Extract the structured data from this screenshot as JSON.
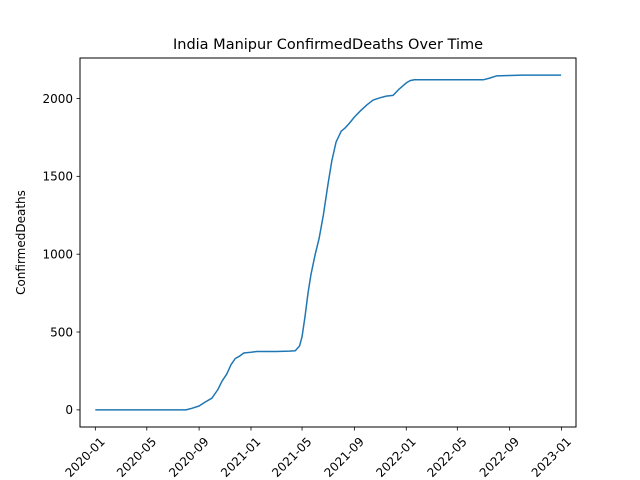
{
  "chart_data": {
    "type": "line",
    "title": "India Manipur ConfirmedDeaths Over Time",
    "xlabel": "",
    "ylabel": "ConfirmedDeaths",
    "xlim": [
      "2019-11-26",
      "2023-02-04"
    ],
    "ylim": [
      -110,
      2260
    ],
    "x_ticks": [
      "2020-01",
      "2020-05",
      "2020-09",
      "2021-01",
      "2021-05",
      "2021-09",
      "2022-01",
      "2022-05",
      "2022-09",
      "2023-01"
    ],
    "y_ticks": [
      0,
      500,
      1000,
      1500,
      2000
    ],
    "grid": false,
    "line_color": "#1f77b4",
    "series": [
      {
        "x": [
          "2020-01-01",
          "2020-03-01",
          "2020-05-01",
          "2020-07-01",
          "2020-08-01",
          "2020-08-15",
          "2020-09-01",
          "2020-09-15",
          "2020-10-01",
          "2020-10-15",
          "2020-10-25",
          "2020-11-05",
          "2020-11-15",
          "2020-11-25",
          "2020-12-05",
          "2020-12-15",
          "2021-01-01",
          "2021-01-15",
          "2021-02-01",
          "2021-03-01",
          "2021-04-01",
          "2021-04-15",
          "2021-04-25",
          "2021-05-01",
          "2021-05-08",
          "2021-05-15",
          "2021-05-22",
          "2021-06-01",
          "2021-06-10",
          "2021-06-20",
          "2021-07-01",
          "2021-07-10",
          "2021-07-20",
          "2021-08-01",
          "2021-08-10",
          "2021-08-20",
          "2021-09-01",
          "2021-09-15",
          "2021-10-01",
          "2021-10-15",
          "2021-11-01",
          "2021-11-15",
          "2021-12-01",
          "2021-12-15",
          "2022-01-01",
          "2022-01-10",
          "2022-01-20",
          "2022-02-01",
          "2022-02-15",
          "2022-03-01",
          "2022-04-01",
          "2022-05-01",
          "2022-06-01",
          "2022-07-01",
          "2022-07-15",
          "2022-08-01",
          "2022-09-01",
          "2022-10-01",
          "2022-11-01",
          "2022-12-01",
          "2022-12-31"
        ],
        "y": [
          0,
          0,
          0,
          0,
          0,
          10,
          25,
          50,
          75,
          130,
          185,
          230,
          290,
          330,
          345,
          365,
          370,
          375,
          375,
          375,
          377,
          380,
          410,
          470,
          600,
          750,
          870,
          1000,
          1100,
          1250,
          1450,
          1600,
          1720,
          1790,
          1810,
          1840,
          1880,
          1920,
          1960,
          1990,
          2005,
          2015,
          2020,
          2060,
          2100,
          2115,
          2120,
          2120,
          2120,
          2120,
          2120,
          2120,
          2120,
          2120,
          2130,
          2145,
          2148,
          2150,
          2150,
          2150,
          2150
        ]
      }
    ]
  }
}
